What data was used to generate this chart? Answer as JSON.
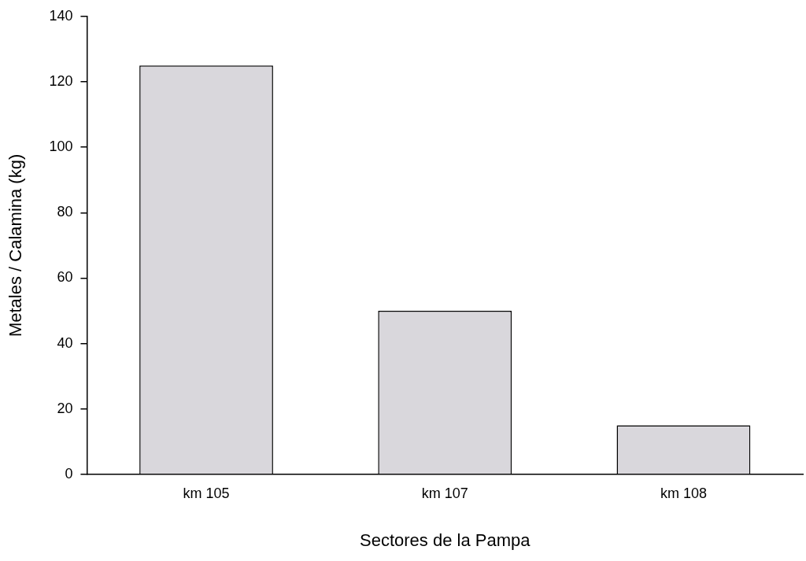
{
  "chart_data": {
    "type": "bar",
    "xlabel": "Sectores de la Pampa",
    "ylabel": "Metales / Calamina (kg)",
    "categories": [
      "km 105",
      "km 107",
      "km 108"
    ],
    "values": [
      125,
      50,
      15
    ],
    "color": "#d9d7dc",
    "ylim": [
      0,
      140
    ],
    "yticks": [
      0,
      20,
      40,
      60,
      80,
      100,
      120,
      140
    ],
    "grid": false
  }
}
